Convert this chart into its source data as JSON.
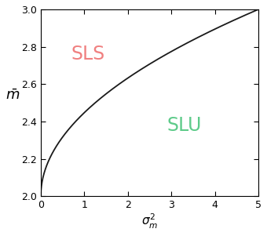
{
  "x_min": 0,
  "x_max": 5,
  "y_min": 2,
  "y_max": 3,
  "x_ticks": [
    0,
    1,
    2,
    3,
    4,
    5
  ],
  "y_ticks": [
    2,
    2.2,
    2.4,
    2.6,
    2.8,
    3
  ],
  "xlabel": "$\\sigma_m^2$",
  "ylabel": "$\\bar{m}$",
  "sls_label": "SLS",
  "slu_label": "SLU",
  "sls_color": "#f08080",
  "slu_color": "#5ecb8a",
  "curve_color": "#1a1a1a",
  "sls_x": 0.7,
  "sls_y": 2.76,
  "slu_x": 2.9,
  "slu_y": 2.38,
  "background_color": "#ffffff",
  "curve_linewidth": 1.3,
  "sls_fontsize": 17,
  "slu_fontsize": 17,
  "tick_labelsize": 9
}
